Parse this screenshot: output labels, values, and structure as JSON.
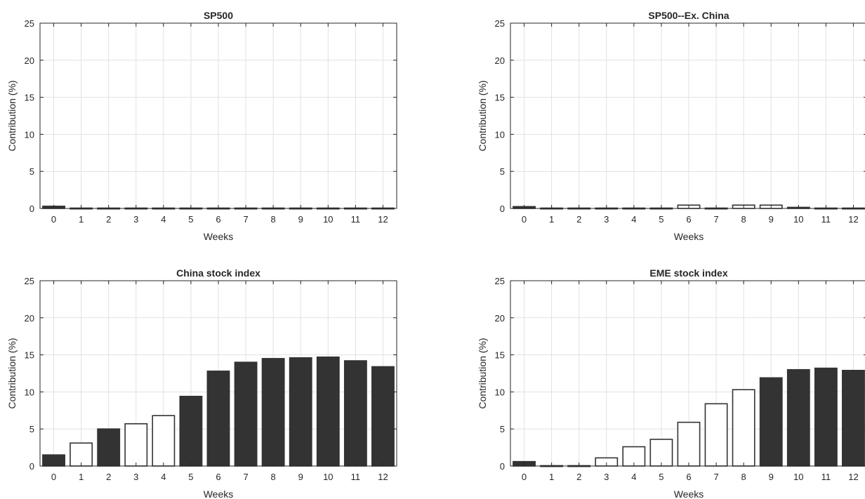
{
  "colors": {
    "filled": "#333333",
    "hollow": "#ffffff",
    "edge": "#333333",
    "grid": "#e1e1e1"
  },
  "chart_data": [
    {
      "type": "bar",
      "title": "SP500",
      "xlabel": "Weeks",
      "ylabel": "Contribution (%)",
      "categories": [
        "0",
        "1",
        "2",
        "3",
        "4",
        "5",
        "6",
        "7",
        "8",
        "9",
        "10",
        "11",
        "12"
      ],
      "values": [
        0.3,
        0.05,
        0.05,
        0.05,
        0.05,
        0.05,
        0.05,
        0.05,
        0.05,
        0.05,
        0.05,
        0.05,
        0.05
      ],
      "filled": [
        true,
        true,
        true,
        true,
        true,
        true,
        true,
        true,
        true,
        true,
        true,
        true,
        true
      ],
      "ylim": [
        0,
        25
      ],
      "yticks": [
        "0",
        "5",
        "10",
        "15",
        "20",
        "25"
      ],
      "grid": true
    },
    {
      "type": "bar",
      "title": "SP500--Ex. China",
      "xlabel": "Weeks",
      "ylabel": "Contribution (%)",
      "categories": [
        "0",
        "1",
        "2",
        "3",
        "4",
        "5",
        "6",
        "7",
        "8",
        "9",
        "10",
        "11",
        "12"
      ],
      "values": [
        0.25,
        0.05,
        0.05,
        0.05,
        0.05,
        0.05,
        0.45,
        0.05,
        0.45,
        0.45,
        0.15,
        0.05,
        0.05
      ],
      "filled": [
        true,
        true,
        true,
        true,
        true,
        true,
        false,
        true,
        false,
        false,
        true,
        true,
        true
      ],
      "ylim": [
        0,
        25
      ],
      "yticks": [
        "0",
        "5",
        "10",
        "15",
        "20",
        "25"
      ],
      "grid": true
    },
    {
      "type": "bar",
      "title": "China stock index",
      "xlabel": "Weeks",
      "ylabel": "Contribution (%)",
      "categories": [
        "0",
        "1",
        "2",
        "3",
        "4",
        "5",
        "6",
        "7",
        "8",
        "9",
        "10",
        "11",
        "12"
      ],
      "values": [
        1.5,
        3.1,
        5.0,
        5.7,
        6.8,
        9.4,
        12.8,
        14.0,
        14.5,
        14.6,
        14.7,
        14.2,
        13.4
      ],
      "filled": [
        true,
        false,
        true,
        false,
        false,
        true,
        true,
        true,
        true,
        true,
        true,
        true,
        true
      ],
      "ylim": [
        0,
        25
      ],
      "yticks": [
        "0",
        "5",
        "10",
        "15",
        "20",
        "25"
      ],
      "grid": true
    },
    {
      "type": "bar",
      "title": "EME stock index",
      "xlabel": "Weeks",
      "ylabel": "Contribution (%)",
      "categories": [
        "0",
        "1",
        "2",
        "3",
        "4",
        "5",
        "6",
        "7",
        "8",
        "9",
        "10",
        "11",
        "12"
      ],
      "values": [
        0.6,
        0.05,
        0.05,
        1.1,
        2.6,
        3.6,
        5.9,
        8.4,
        10.3,
        11.9,
        13.0,
        13.2,
        12.9
      ],
      "filled": [
        true,
        true,
        true,
        false,
        false,
        false,
        false,
        false,
        false,
        true,
        true,
        true,
        true
      ],
      "ylim": [
        0,
        25
      ],
      "yticks": [
        "0",
        "5",
        "10",
        "15",
        "20",
        "25"
      ],
      "grid": true
    }
  ]
}
